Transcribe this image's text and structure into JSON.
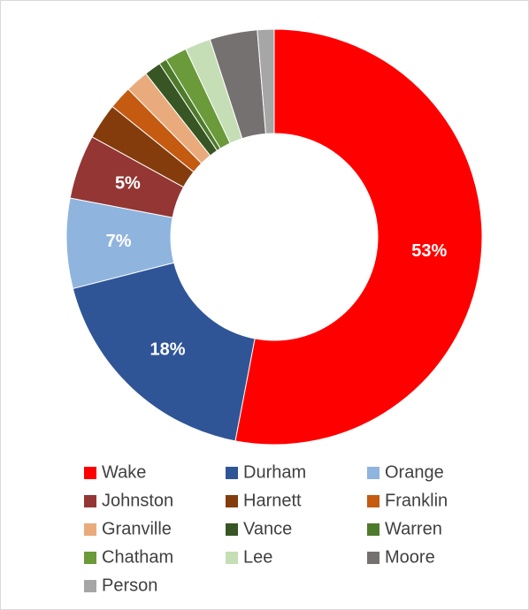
{
  "chart_data": {
    "type": "donut",
    "categories": [
      "Wake",
      "Durham",
      "Orange",
      "Johnston",
      "Harnett",
      "Franklin",
      "Granville",
      "Vance",
      "Warren",
      "Chatham",
      "Lee",
      "Moore",
      "Person"
    ],
    "values": [
      53,
      18,
      7,
      5,
      2.8,
      1.8,
      1.8,
      1.3,
      0.6,
      1.7,
      2,
      3.7,
      1.3
    ],
    "value_labels": [
      "53%",
      "18%",
      "7%",
      "5%",
      null,
      null,
      null,
      null,
      null,
      null,
      null,
      null,
      null
    ],
    "colors": [
      "#ff0000",
      "#2f5597",
      "#8fb4de",
      "#943634",
      "#843c0c",
      "#c55a11",
      "#e9ab7c",
      "#375623",
      "#4e7a2c",
      "#6a9a3a",
      "#c5deb5",
      "#767171",
      "#a6a6a6"
    ]
  }
}
